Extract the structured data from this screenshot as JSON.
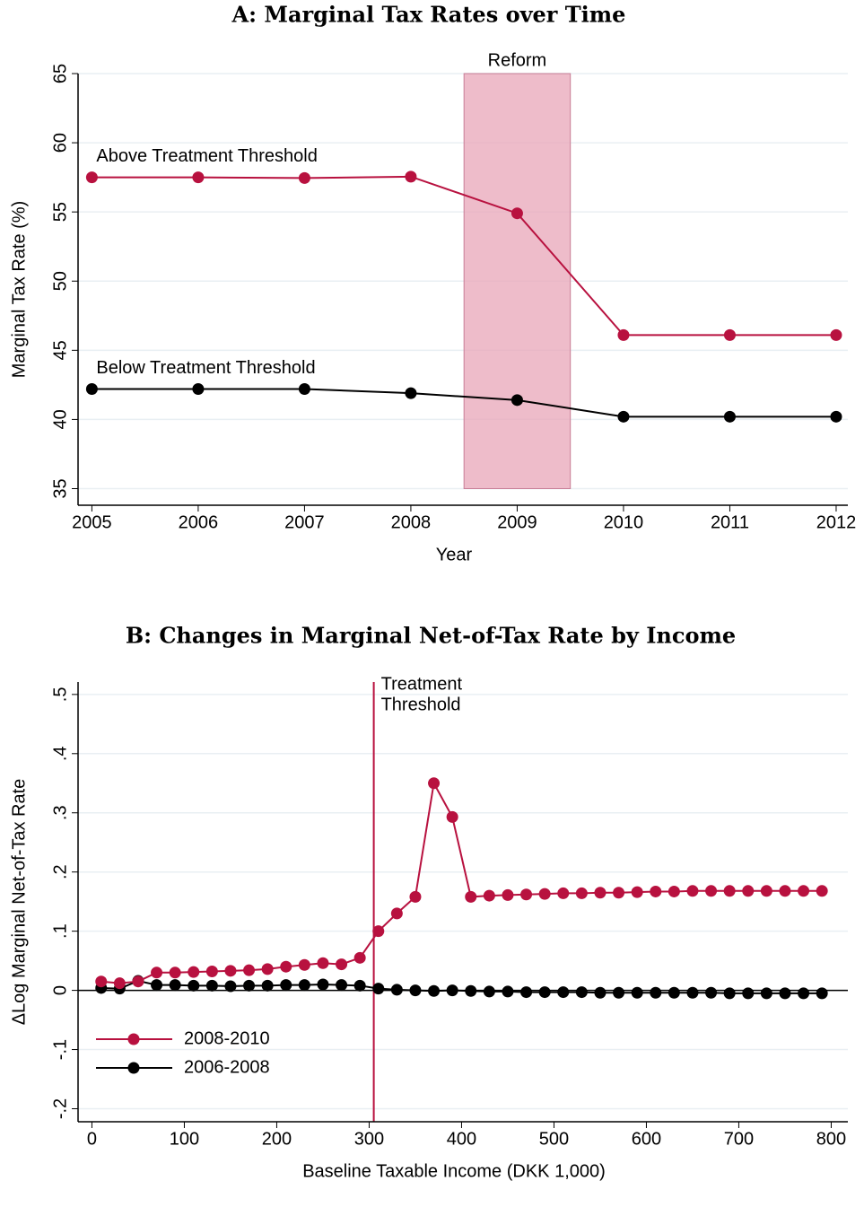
{
  "chart_data": [
    {
      "type": "line",
      "title": "A: Marginal Tax Rates over Time",
      "x_label": "Year",
      "y_label": "Marginal Tax Rate (%)",
      "x": [
        2005,
        2006,
        2007,
        2008,
        2009,
        2010,
        2011,
        2012
      ],
      "series": [
        {
          "name": "Above Treatment Threshold",
          "color": "#b8113f",
          "values": [
            57.5,
            57.5,
            57.45,
            57.55,
            54.9,
            46.1,
            46.1,
            46.1
          ]
        },
        {
          "name": "Below Treatment Threshold",
          "color": "#000000",
          "values": [
            42.2,
            42.2,
            42.2,
            41.9,
            41.4,
            40.2,
            40.2,
            40.2
          ]
        }
      ],
      "xlim": [
        2004.87,
        2012.11
      ],
      "xticks": [
        2005,
        2006,
        2007,
        2008,
        2009,
        2010,
        2011,
        2012
      ],
      "ylim": [
        33.8,
        65
      ],
      "yticks": [
        35,
        40,
        45,
        50,
        55,
        60,
        65
      ],
      "grid": true,
      "shaded_region": {
        "x": [
          2008.5,
          2009.5
        ],
        "label": "Reform",
        "color": "#e8a6b8"
      },
      "legend": "inline"
    },
    {
      "type": "line",
      "title": "B: Changes in Marginal Net-of-Tax Rate by Income",
      "x_label": "Baseline Taxable Income (DKK 1,000)",
      "y_label": "ΔLog Marginal Net-of-Tax Rate",
      "x": [
        10,
        30,
        50,
        70,
        90,
        110,
        130,
        150,
        170,
        190,
        210,
        230,
        250,
        270,
        290,
        310,
        330,
        350,
        370,
        390,
        410,
        430,
        450,
        470,
        490,
        510,
        530,
        550,
        570,
        590,
        610,
        630,
        650,
        670,
        690,
        710,
        730,
        750,
        770,
        790
      ],
      "series": [
        {
          "name": "2008-2010",
          "color": "#b8113f",
          "values": [
            0.015,
            0.012,
            0.015,
            0.03,
            0.03,
            0.031,
            0.032,
            0.033,
            0.034,
            0.036,
            0.04,
            0.043,
            0.046,
            0.044,
            0.055,
            0.1,
            0.13,
            0.158,
            0.35,
            0.293,
            0.158,
            0.16,
            0.161,
            0.162,
            0.163,
            0.164,
            0.164,
            0.165,
            0.165,
            0.166,
            0.167,
            0.167,
            0.168,
            0.168,
            0.168,
            0.168,
            0.168,
            0.168,
            0.168,
            0.168
          ]
        },
        {
          "name": "2006-2008",
          "color": "#000000",
          "values": [
            0.004,
            0.003,
            0.016,
            0.009,
            0.009,
            0.008,
            0.008,
            0.007,
            0.008,
            0.008,
            0.009,
            0.009,
            0.01,
            0.009,
            0.008,
            0.003,
            0.001,
            0,
            -0.001,
            0,
            -0.001,
            -0.002,
            -0.002,
            -0.003,
            -0.003,
            -0.003,
            -0.003,
            -0.004,
            -0.004,
            -0.004,
            -0.004,
            -0.004,
            -0.004,
            -0.004,
            -0.005,
            -0.005,
            -0.005,
            -0.005,
            -0.005,
            -0.005
          ]
        }
      ],
      "xlim": [
        -15,
        818
      ],
      "xticks": [
        0,
        100,
        200,
        300,
        400,
        500,
        600,
        700,
        800
      ],
      "ylim": [
        -0.222,
        0.521
      ],
      "yticks": [
        {
          "value": -0.2,
          "label": "-.2"
        },
        {
          "value": -0.1,
          "label": "-.1"
        },
        0,
        {
          "value": 0.1,
          "label": ".1"
        },
        {
          "value": 0.2,
          "label": ".2"
        },
        {
          "value": 0.3,
          "label": ".3"
        },
        {
          "value": 0.4,
          "label": ".4"
        },
        {
          "value": 0.5,
          "label": ".5"
        }
      ],
      "grid": true,
      "hline": 0,
      "vline": {
        "x": 305,
        "label": [
          "Treatment",
          "Threshold"
        ],
        "color": "#b8113f"
      },
      "legend": "bottom-left"
    }
  ]
}
